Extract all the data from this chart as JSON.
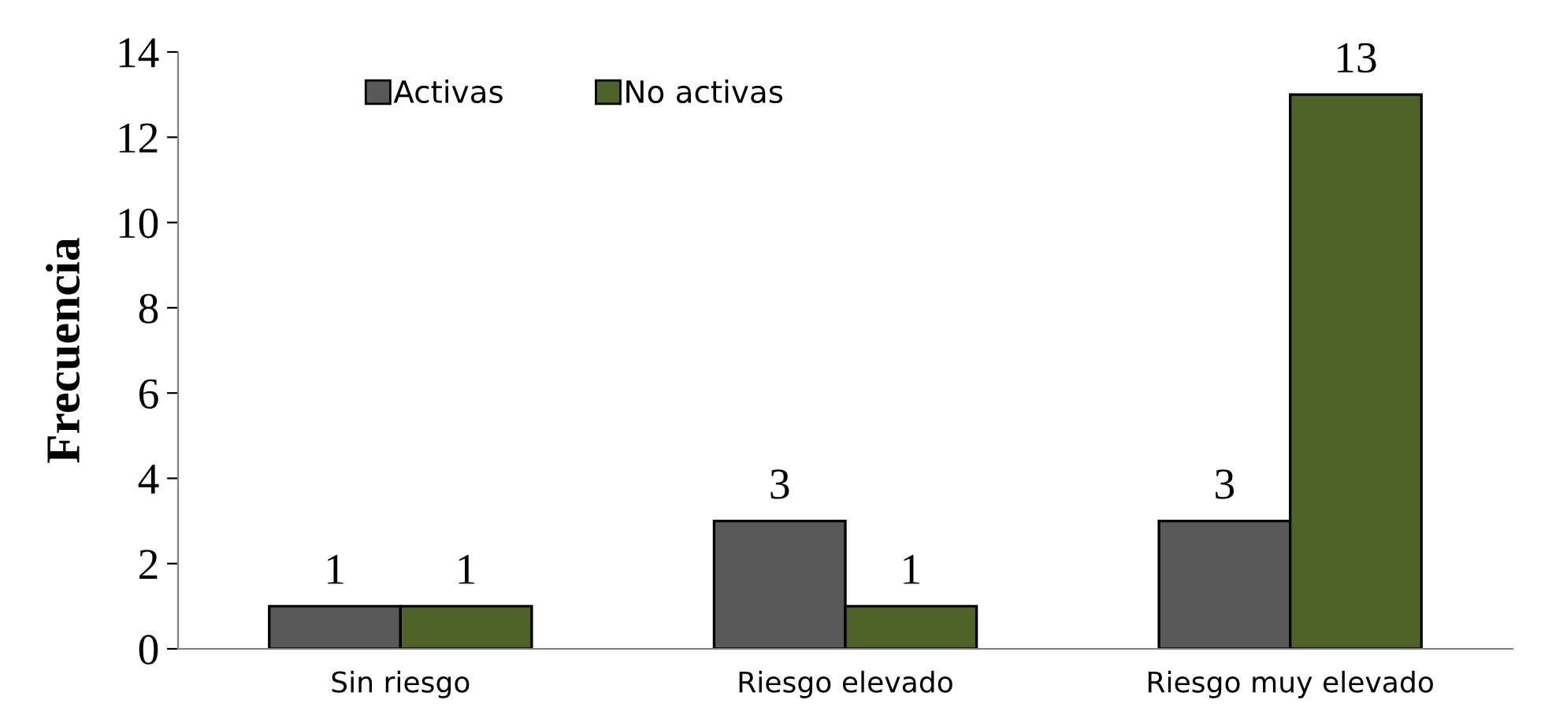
{
  "chart_data": {
    "type": "bar",
    "ylabel": "Frecuencia",
    "categories": [
      "Sin riesgo",
      "Riesgo elevado",
      "Riesgo muy elevado"
    ],
    "series": [
      {
        "name": "Activas",
        "color": "#595959",
        "values": [
          1,
          3,
          3
        ]
      },
      {
        "name": "No activas",
        "color": "#4f6228",
        "values": [
          1,
          1,
          13
        ]
      }
    ],
    "ylim": [
      0,
      14
    ],
    "yticks": [
      0,
      2,
      4,
      6,
      8,
      10,
      12,
      14
    ],
    "grid": false,
    "legend": "top left",
    "data_labels": true
  }
}
